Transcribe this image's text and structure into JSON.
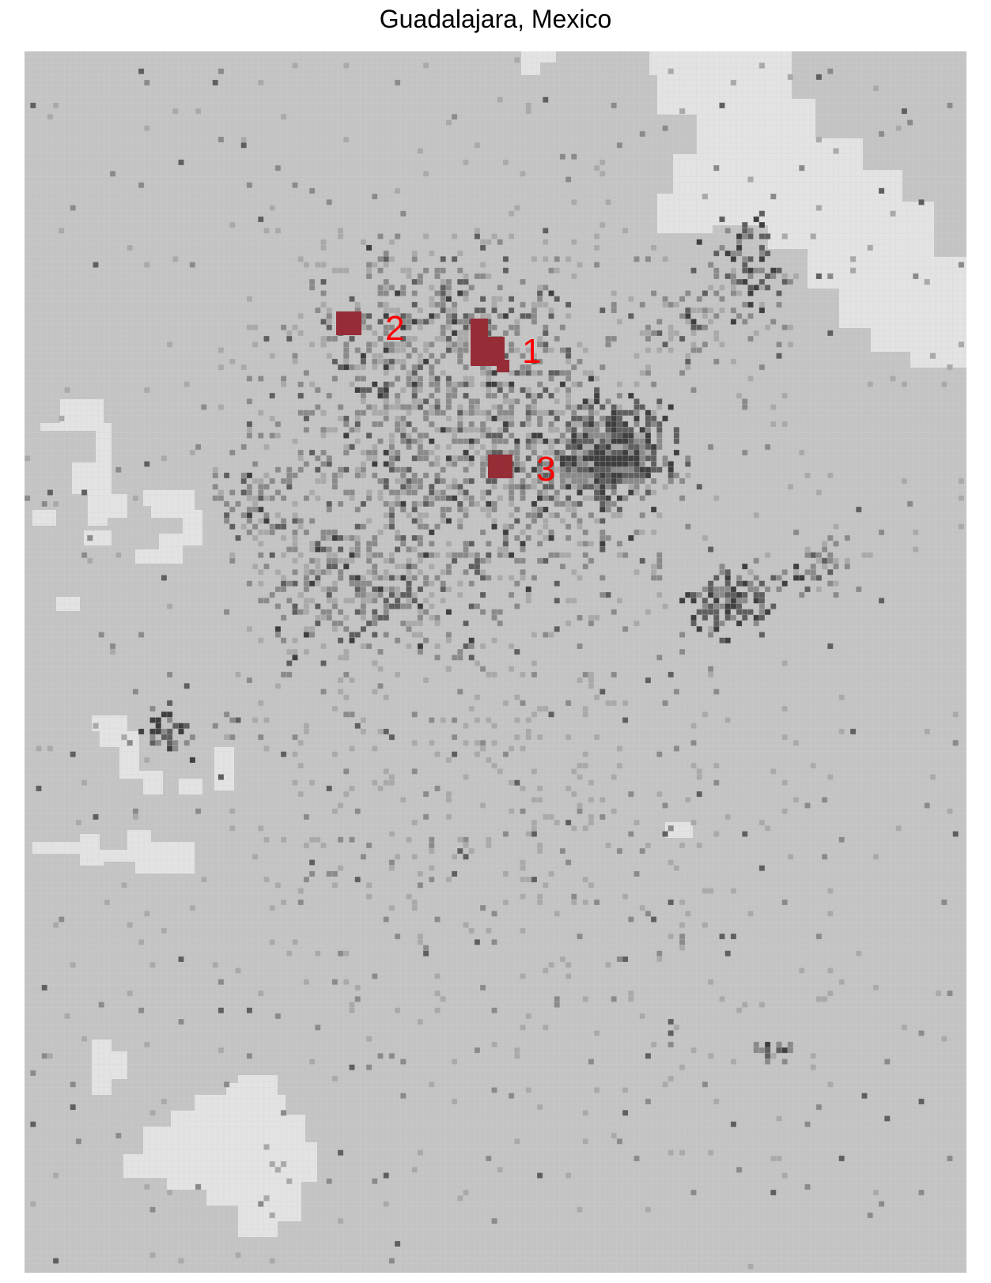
{
  "title": "Guadalajara, Mexico",
  "colors": {
    "background": "#c3c3c3",
    "light_area": "#e3e3e3",
    "urban_light": "#a9a9a9",
    "urban_mid": "#8a8a8a",
    "urban_dark": "#5f5f5f",
    "urban_core": "#3f3f3f",
    "marker_fill": "#962d36",
    "marker_label": "#ff0000"
  },
  "markers": [
    {
      "id": "1",
      "label": "1"
    },
    {
      "id": "2",
      "label": "2"
    },
    {
      "id": "3",
      "label": "3"
    }
  ]
}
